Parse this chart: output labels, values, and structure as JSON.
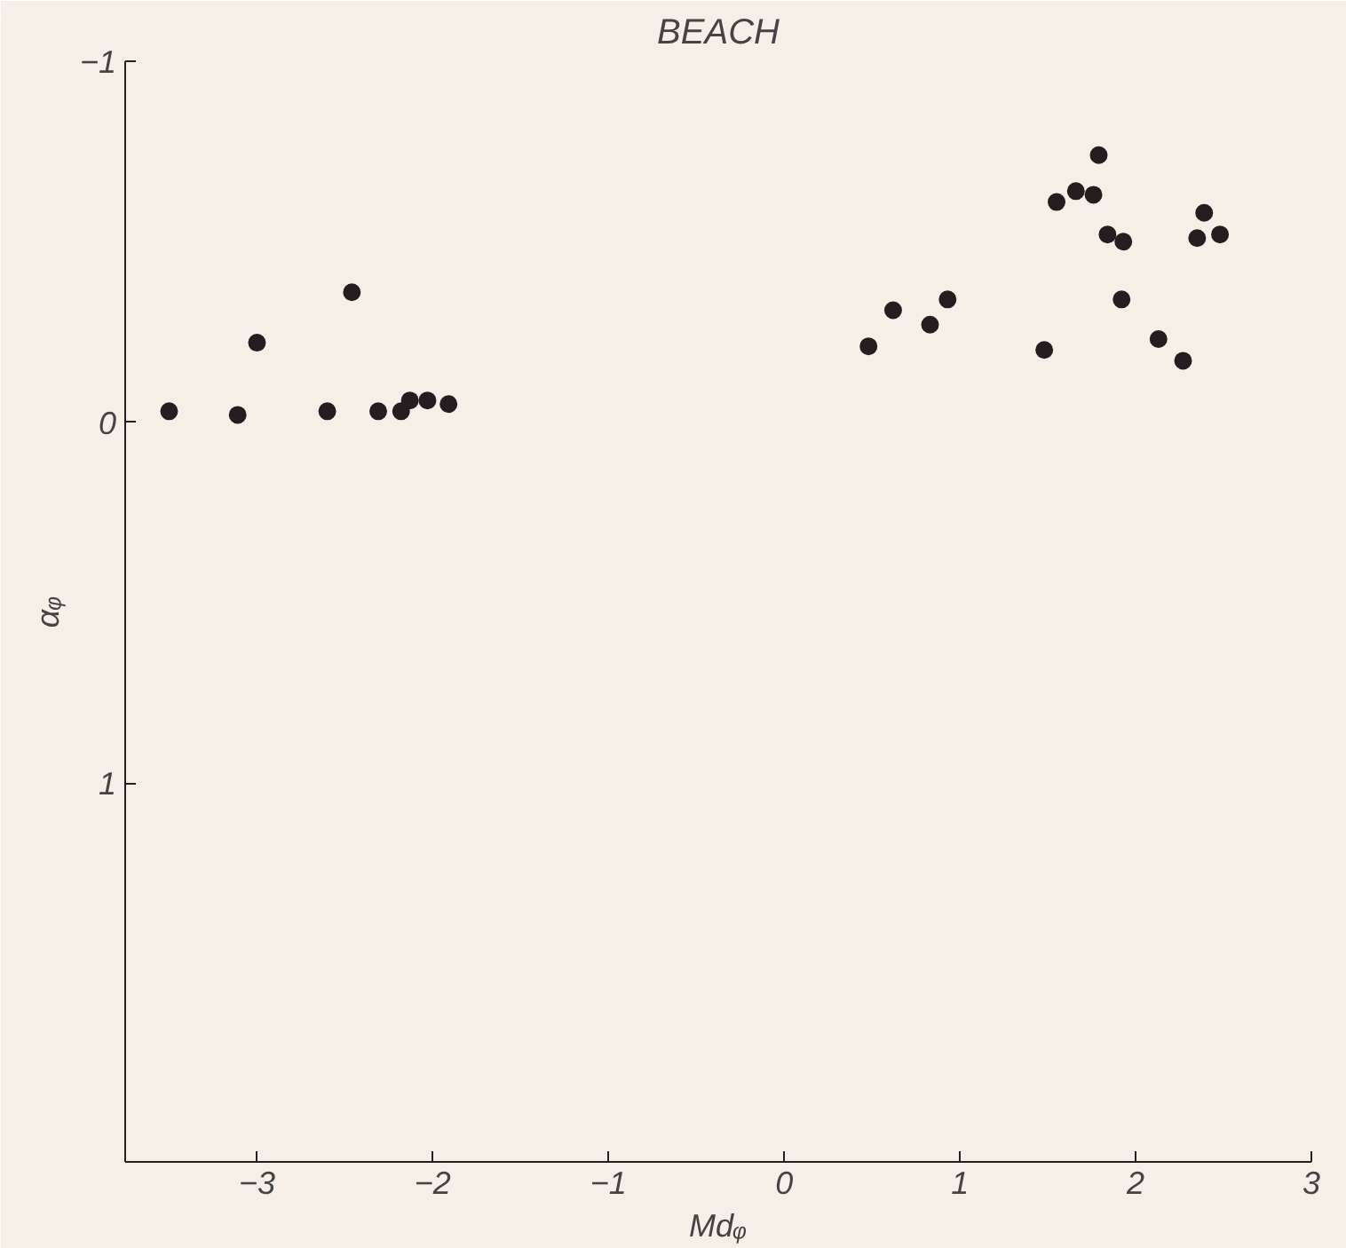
{
  "chart_data": {
    "type": "scatter",
    "title": "BEACH",
    "xlabel": "Mdᵩ",
    "ylabel": "αᵩ",
    "x": [
      -3.5,
      -3.11,
      -3.0,
      -2.46,
      -2.6,
      -2.31,
      -2.18,
      -2.13,
      -2.03,
      -1.91,
      0.48,
      0.62,
      0.83,
      0.93,
      1.48,
      1.55,
      1.66,
      1.76,
      1.79,
      1.84,
      1.93,
      1.92,
      2.13,
      2.27,
      2.35,
      2.39,
      2.48
    ],
    "values": [
      -0.03,
      -0.02,
      -0.22,
      -0.36,
      -0.03,
      -0.03,
      -0.03,
      -0.06,
      -0.06,
      -0.05,
      -0.21,
      -0.31,
      -0.27,
      -0.34,
      -0.2,
      -0.61,
      -0.64,
      -0.63,
      -0.74,
      -0.52,
      -0.5,
      -0.34,
      -0.23,
      -0.17,
      -0.51,
      -0.58,
      -0.52
    ],
    "color": "#231f20",
    "marker": "circle",
    "grid": false,
    "xlim": [
      -3.75,
      3
    ],
    "ylim": [
      2.05,
      -1
    ],
    "xticks": [
      -3,
      -2,
      -1,
      0,
      1,
      2,
      3
    ],
    "yticks": [
      -1,
      0,
      1
    ]
  }
}
